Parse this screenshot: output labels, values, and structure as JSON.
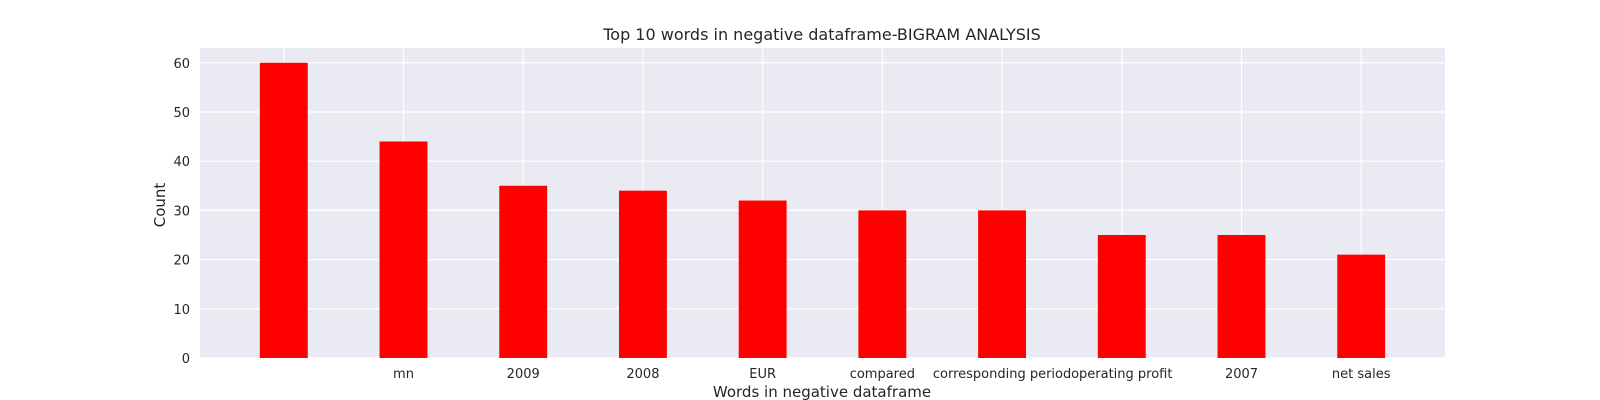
{
  "chart_data": {
    "type": "bar",
    "title": "Top 10 words in negative dataframe-BIGRAM ANALYSIS",
    "xlabel": "Words in negative dataframe",
    "ylabel": "Count",
    "categories": [
      "",
      "mn",
      "2009",
      "2008",
      "EUR",
      "compared",
      "corresponding period",
      "operating profit",
      "2007",
      "net sales"
    ],
    "values": [
      60,
      44,
      35,
      34,
      32,
      30,
      30,
      25,
      25,
      21
    ],
    "ylim": [
      0,
      63
    ],
    "yticks": [
      0,
      10,
      20,
      30,
      40,
      50,
      60
    ],
    "grid": true,
    "colors": {
      "bar": "#ff0000",
      "background": "#eaeaf2",
      "grid": "#ffffff",
      "text": "#262626"
    }
  }
}
